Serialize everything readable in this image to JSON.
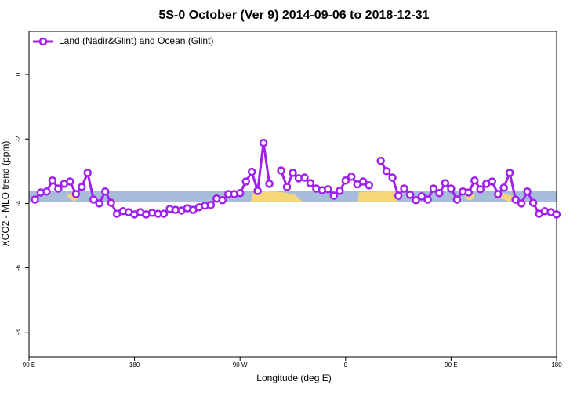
{
  "chart_data": {
    "type": "line",
    "title": "5S-0 October (Ver 9)   2014-09-06 to 2018-12-31",
    "x_label": "Longitude (deg E)",
    "y_label": "XCO2 - MLO trend (ppm)",
    "xlim": [
      90,
      540
    ],
    "xticks": [
      {
        "value": 90,
        "label": "90 E"
      },
      180,
      {
        "value": 270,
        "label": "90 W"
      },
      {
        "value": 360,
        "label": "0"
      },
      {
        "value": 450,
        "label": "90 E"
      },
      {
        "value": 540,
        "label": "180"
      }
    ],
    "ylim": [
      -8.76,
      1.34
    ],
    "yticks": [
      0,
      -2,
      -4,
      -6,
      -8
    ],
    "legend": "top-left",
    "x": [
      95,
      100,
      105,
      110,
      115,
      120,
      125,
      130,
      135,
      140,
      145,
      150,
      155,
      160,
      165,
      170,
      175,
      180,
      185,
      190,
      195,
      200,
      205,
      210,
      215,
      220,
      225,
      230,
      235,
      240,
      245,
      250,
      255,
      260,
      265,
      270,
      275,
      280,
      285,
      290,
      295,
      300,
      305,
      310,
      315,
      320,
      325,
      330,
      335,
      340,
      345,
      350,
      355,
      360,
      365,
      370,
      375,
      380,
      385,
      390,
      395,
      400,
      405,
      410,
      415,
      420,
      425,
      430,
      435,
      440,
      445,
      450,
      455,
      460,
      465,
      470,
      475,
      480,
      485,
      490,
      495,
      500,
      505,
      510,
      515,
      520,
      525,
      530,
      535,
      540
    ],
    "series": [
      {
        "name": "Land (Nadir&Glint) and Ocean (Glint)",
        "color": "#a020f0",
        "values": [
          -3.88,
          -3.66,
          -3.63,
          -3.29,
          -3.54,
          -3.39,
          -3.32,
          -3.71,
          -3.49,
          -3.05,
          -3.88,
          -4.0,
          -3.63,
          -3.98,
          -4.32,
          -4.24,
          -4.27,
          -4.34,
          -4.27,
          -4.34,
          -4.29,
          -4.32,
          -4.32,
          -4.17,
          -4.2,
          -4.22,
          -4.15,
          -4.2,
          -4.12,
          -4.07,
          -4.05,
          -3.85,
          -3.9,
          -3.71,
          -3.71,
          -3.68,
          -3.32,
          -3.02,
          -3.61,
          -2.12,
          -3.39,
          null,
          -2.98,
          -3.49,
          -3.05,
          -3.22,
          -3.2,
          -3.37,
          -3.54,
          -3.59,
          -3.56,
          -3.76,
          -3.61,
          -3.29,
          -3.17,
          -3.41,
          -3.32,
          -3.44,
          null,
          -2.68,
          -3.0,
          -3.2,
          -3.76,
          -3.54,
          -3.73,
          -3.9,
          -3.78,
          -3.88,
          -3.54,
          -3.68,
          -3.37,
          -3.54,
          -3.88,
          -3.63,
          -3.66,
          -3.29,
          -3.56,
          -3.39,
          -3.32,
          -3.71,
          -3.51,
          -3.05,
          -3.88,
          -4.0,
          -3.63,
          -3.98,
          -4.32,
          -4.24,
          -4.27,
          -4.34
        ]
      }
    ]
  }
}
